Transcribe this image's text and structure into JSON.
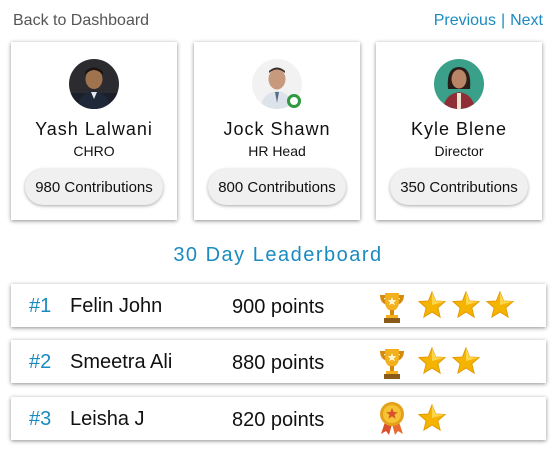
{
  "nav": {
    "back_label": "Back to Dashboard",
    "previous_label": "Previous",
    "separator": "|",
    "next_label": "Next"
  },
  "cards": [
    {
      "name": "Yash Lalwani",
      "role": "CHRO",
      "contributions": "980 Contributions"
    },
    {
      "name": "Jock Shawn",
      "role": "HR Head",
      "contributions": "800 Contributions",
      "online": true
    },
    {
      "name": "Kyle Blene",
      "role": "Director",
      "contributions": "350 Contributions"
    }
  ],
  "leaderboard": {
    "title": "30 Day Leaderboard",
    "rows": [
      {
        "rank": "#1",
        "name": "Felin John",
        "points": "900 points",
        "award_icon": "trophy-icon",
        "stars": 3
      },
      {
        "rank": "#2",
        "name": "Smeetra Ali",
        "points": "880 points",
        "award_icon": "trophy-icon",
        "stars": 2
      },
      {
        "rank": "#3",
        "name": "Leisha J",
        "points": "820 points",
        "award_icon": "medal-icon",
        "stars": 1
      }
    ]
  },
  "colors": {
    "accent": "#1a8ac0",
    "online": "#2e9a3e",
    "star": "#f4b400",
    "trophy": "#e8a317"
  }
}
